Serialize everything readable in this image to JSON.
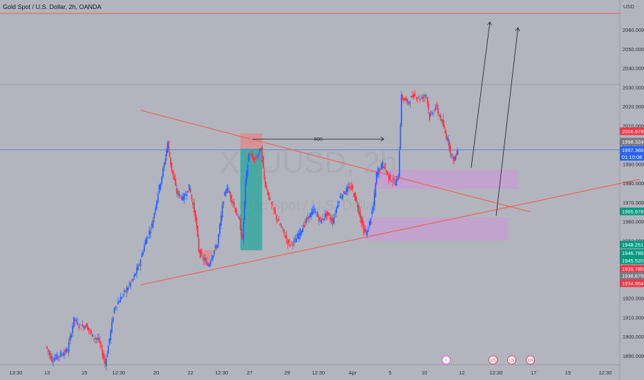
{
  "header": {
    "title": "Gold Spot / U.S. Dollar, 2h, OANDA"
  },
  "watermark": {
    "symbol": "XAUUSD, 2h",
    "name": "Gold Spot / U.S. Dollar"
  },
  "colors": {
    "background": "#b2b5be",
    "up": "#2962ff",
    "down": "#f23645",
    "trendline": "#f55a4a",
    "zone": "#ce93d8",
    "long_profit": "#26a69a",
    "long_stop": "#ff6b6b",
    "current_price": "#2962ff"
  },
  "chart_data": {
    "type": "candlestick",
    "title": "Gold Spot / U.S. Dollar, 2h, OANDA",
    "y_axis": {
      "label": "USD",
      "ticks": [
        2060,
        2050,
        2040,
        2030,
        2020,
        2010,
        2000,
        1990,
        1980,
        1970,
        1960,
        1950,
        1940,
        1930,
        1920,
        1910,
        1900,
        1890
      ],
      "tick_labels": [
        "2060.000",
        "2050.000",
        "2040.000",
        "2030.000",
        "2020.000",
        "2010.000",
        "2000.000",
        "1990.000",
        "1980.000",
        "1970.000",
        "1960.000",
        "1950.000",
        "1940.000",
        "1930.000",
        "1920.000",
        "1910.000",
        "1900.000",
        "1890.000"
      ]
    },
    "x_axis": {
      "ticks": [
        {
          "label": "13:30",
          "t": 0
        },
        {
          "label": "13",
          "t": 10
        },
        {
          "label": "15",
          "t": 22
        },
        {
          "label": "12:30",
          "t": 33
        },
        {
          "label": "20",
          "t": 45
        },
        {
          "label": "22",
          "t": 56
        },
        {
          "label": "12:30",
          "t": 66
        },
        {
          "label": "27",
          "t": 75
        },
        {
          "label": "29",
          "t": 87
        },
        {
          "label": "12:30",
          "t": 97
        },
        {
          "label": "Apr",
          "t": 108
        },
        {
          "label": "5",
          "t": 120
        },
        {
          "label": "10",
          "t": 131
        },
        {
          "label": "12",
          "t": 143
        },
        {
          "label": "12:30",
          "t": 154
        },
        {
          "label": "17",
          "t": 166
        },
        {
          "label": "19",
          "t": 177
        },
        {
          "label": "12:30",
          "t": 189
        }
      ]
    },
    "price_path": [
      [
        10,
        1895
      ],
      [
        12,
        1888
      ],
      [
        14,
        1890
      ],
      [
        17,
        1893
      ],
      [
        19,
        1909
      ],
      [
        21,
        1905
      ],
      [
        23,
        1906
      ],
      [
        25,
        1900
      ],
      [
        27,
        1898
      ],
      [
        29,
        1886
      ],
      [
        30,
        1895
      ],
      [
        32,
        1915
      ],
      [
        34,
        1920
      ],
      [
        36,
        1925
      ],
      [
        38,
        1930
      ],
      [
        40,
        1938
      ],
      [
        42,
        1950
      ],
      [
        44,
        1958
      ],
      [
        46,
        1975
      ],
      [
        48,
        1990
      ],
      [
        49,
        2001
      ],
      [
        50,
        1990
      ],
      [
        52,
        1975
      ],
      [
        54,
        1972
      ],
      [
        56,
        1978
      ],
      [
        58,
        1962
      ],
      [
        59,
        1945
      ],
      [
        60,
        1942
      ],
      [
        62,
        1937
      ],
      [
        64,
        1945
      ],
      [
        65,
        1948
      ],
      [
        67,
        1972
      ],
      [
        68,
        1978
      ],
      [
        70,
        1970
      ],
      [
        72,
        1960
      ],
      [
        73,
        1950
      ],
      [
        74,
        1980
      ],
      [
        75,
        1995
      ],
      [
        77,
        1992
      ],
      [
        79,
        1998
      ],
      [
        80,
        1982
      ],
      [
        82,
        1970
      ],
      [
        84,
        1962
      ],
      [
        86,
        1955
      ],
      [
        88,
        1948
      ],
      [
        90,
        1950
      ],
      [
        92,
        1956
      ],
      [
        94,
        1962
      ],
      [
        96,
        1966
      ],
      [
        98,
        1960
      ],
      [
        100,
        1964
      ],
      [
        102,
        1960
      ],
      [
        104,
        1972
      ],
      [
        106,
        1976
      ],
      [
        108,
        1978
      ],
      [
        110,
        1968
      ],
      [
        112,
        1955
      ],
      [
        113,
        1954
      ],
      [
        115,
        1968
      ],
      [
        116,
        1985
      ],
      [
        118,
        1990
      ],
      [
        120,
        1983
      ],
      [
        122,
        1980
      ],
      [
        123,
        1984
      ],
      [
        124,
        2025
      ],
      [
        126,
        2022
      ],
      [
        128,
        2026
      ],
      [
        130,
        2024
      ],
      [
        132,
        2026
      ],
      [
        133,
        2014
      ],
      [
        135,
        2020
      ],
      [
        137,
        2012
      ],
      [
        138,
        2006
      ],
      [
        139,
        2002
      ],
      [
        140,
        1994
      ],
      [
        141,
        1992
      ],
      [
        142,
        1998
      ]
    ],
    "price_labels": [
      {
        "label": "2006.979",
        "price": 2006.979,
        "color": "#f23645"
      },
      {
        "label": "1998.324",
        "price": 1998.324,
        "color": "#787b86"
      },
      {
        "label": "1997.360",
        "price": 1997.36,
        "color": "#2962ff"
      },
      {
        "label": "01:10:08",
        "price": 1995.0,
        "color": "#2962ff"
      },
      {
        "label": "1965.978",
        "price": 1965.978,
        "color": "#089981"
      },
      {
        "label": "1948.251",
        "price": 1948.251,
        "color": "#089981"
      },
      {
        "label": "1946.785",
        "price": 1946.785,
        "color": "#089981"
      },
      {
        "label": "1945.520",
        "price": 1945.52,
        "color": "#089981"
      },
      {
        "label": "1939.785",
        "price": 1939.785,
        "color": "#f23645"
      },
      {
        "label": "1938.879",
        "price": 1938.879,
        "color": "#787b86"
      },
      {
        "label": "1934.954",
        "price": 1934.954,
        "color": "#f23645"
      }
    ],
    "horizontal_lines": [
      {
        "price": 2068.5,
        "color": "#f55a4a"
      },
      {
        "price": 2031.5,
        "color": "#9598a1"
      },
      {
        "price": 1997.36,
        "color": "#5b7bd6"
      }
    ],
    "trendlines": [
      {
        "from": {
          "t": 40,
          "p": 2018
        },
        "to": {
          "t": 165,
          "p": 1965
        }
      },
      {
        "from": {
          "t": 40,
          "p": 1927
        },
        "to": {
          "t": 200,
          "p": 1982
        }
      }
    ],
    "zones": [
      {
        "t0": 115,
        "t1": 161,
        "p0": 1977,
        "p1": 1987
      },
      {
        "t0": 112,
        "t1": 158,
        "p0": 1950,
        "p1": 1962
      }
    ],
    "long_position": {
      "t0": 72,
      "t1": 79,
      "entry": 1998,
      "target": 1945,
      "stop": 2006
    },
    "annotations": [
      {
        "text": "BOS",
        "t0": 76,
        "t1": 118,
        "p": 2003
      }
    ],
    "arrows": [
      {
        "from": {
          "t": 146,
          "p": 1988
        },
        "to": {
          "t": 152,
          "p": 2064
        }
      },
      {
        "from": {
          "t": 154,
          "p": 1963
        },
        "to": {
          "t": 161,
          "p": 2061
        }
      }
    ],
    "event_markers": [
      {
        "t": 138,
        "symbol": "⚡"
      },
      {
        "t": 153,
        "symbol": "US"
      },
      {
        "t": 159,
        "symbol": "US"
      },
      {
        "t": 165,
        "symbol": "US"
      }
    ]
  }
}
